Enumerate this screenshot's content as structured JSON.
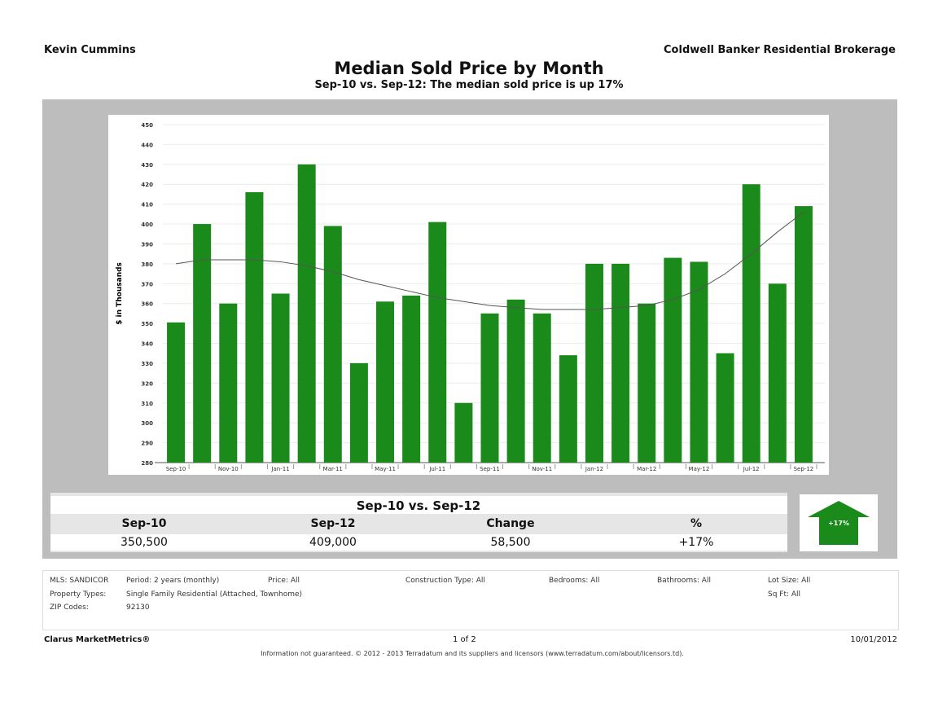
{
  "header": {
    "agent": "Kevin Cummins",
    "brokerage": "Coldwell Banker Residential Brokerage"
  },
  "title": "Median Sold Price by Month",
  "subtitle": "Sep-10 vs. Sep-12:  The median sold price is up 17%",
  "chart_data": {
    "type": "bar",
    "ylabel": "$ in Thousands",
    "ylim": [
      280,
      450
    ],
    "yticks": [
      280,
      290,
      300,
      310,
      320,
      330,
      340,
      350,
      360,
      370,
      380,
      390,
      400,
      410,
      420,
      430,
      440,
      450
    ],
    "grid": true,
    "bar_color": "#1a8a1a",
    "categories": [
      "Sep-10",
      "Oct-10",
      "Nov-10",
      "Dec-10",
      "Jan-11",
      "Feb-11",
      "Mar-11",
      "Apr-11",
      "May-11",
      "Jun-11",
      "Jul-11",
      "Aug-11",
      "Sep-11",
      "Oct-11",
      "Nov-11",
      "Dec-11",
      "Jan-12",
      "Feb-12",
      "Mar-12",
      "Apr-12",
      "May-12",
      "Jun-12",
      "Jul-12",
      "Aug-12",
      "Sep-12"
    ],
    "xtick_labels": [
      "Sep-10",
      "Nov-10",
      "Jan-11",
      "Mar-11",
      "May-11",
      "Jul-11",
      "Sep-11",
      "Nov-11",
      "Jan-12",
      "Mar-12",
      "May-12",
      "Jul-12",
      "Sep-12"
    ],
    "values": [
      350.5,
      400,
      360,
      416,
      365,
      430,
      399,
      330,
      361,
      364,
      401,
      310,
      355,
      362,
      355,
      334,
      380,
      380,
      360,
      383,
      381,
      335,
      420,
      370,
      409
    ],
    "trend": [
      380,
      382,
      382,
      382,
      381,
      379,
      376,
      372,
      369,
      366,
      363,
      361,
      359,
      358,
      357,
      357,
      357,
      358,
      359,
      362,
      367,
      375,
      385,
      396,
      406
    ]
  },
  "summary": {
    "title": "Sep-10 vs. Sep-12",
    "headers": [
      "Sep-10",
      "Sep-12",
      "Change",
      "%"
    ],
    "values": [
      "350,500",
      "409,000",
      "58,500",
      "+17%"
    ],
    "arrow_label": "+17%",
    "arrow_color": "#1a8a1a"
  },
  "criteria": {
    "mls": "MLS: SANDICOR",
    "period": "Period: 2 years (monthly)",
    "price": "Price: All",
    "construction": "Construction Type: All",
    "bedrooms": "Bedrooms: All",
    "bathrooms": "Bathrooms: All",
    "lot": "Lot Size: All",
    "sqft": "Sq Ft: All",
    "ptype_label": "Property Types:",
    "ptype": "Single Family Residential (Attached, Townhome)",
    "zip_label": "ZIP Codes:",
    "zip": "92130"
  },
  "footer": {
    "brand": "Clarus MarketMetrics®",
    "page": "1 of 2",
    "date": "10/01/2012",
    "disclaimer": "Information not guaranteed. © 2012 - 2013 Terradatum and its suppliers and licensors (www.terradatum.com/about/licensors.td)."
  }
}
